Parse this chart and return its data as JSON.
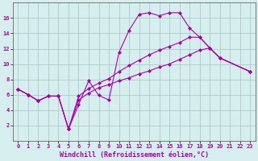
{
  "background_color": "#d6eeee",
  "grid_color": "#aacccc",
  "line_color": "#aa00aa",
  "xlabel": "Windchill (Refroidissement éolien,°C)",
  "xlim": [
    -0.5,
    23.5
  ],
  "ylim": [
    0,
    18
  ],
  "xticks": [
    0,
    1,
    2,
    3,
    4,
    5,
    6,
    7,
    8,
    9,
    10,
    11,
    12,
    13,
    14,
    15,
    16,
    17,
    18,
    19,
    20,
    21,
    22,
    23
  ],
  "yticks": [
    2,
    4,
    6,
    8,
    10,
    12,
    14,
    16
  ],
  "line1_x": [
    0,
    1,
    2,
    3,
    4,
    5,
    6,
    7,
    8,
    9,
    10,
    11,
    12,
    13,
    14,
    15,
    16,
    17,
    18,
    19,
    20,
    23
  ],
  "line1_y": [
    6.7,
    6.0,
    5.2,
    5.8,
    5.8,
    1.5,
    4.7,
    7.8,
    5.9,
    5.3,
    11.5,
    14.4,
    16.5,
    16.7,
    16.3,
    16.7,
    16.7,
    14.7,
    13.5,
    12.1,
    10.8,
    9.0
  ],
  "line2_x": [
    0,
    1,
    2,
    3,
    4,
    5,
    6,
    7,
    8,
    9,
    10,
    11,
    12,
    13,
    14,
    15,
    16,
    17,
    18,
    19,
    20,
    23
  ],
  "line2_y": [
    6.7,
    6.0,
    5.2,
    5.8,
    5.8,
    1.5,
    5.8,
    6.8,
    7.5,
    8.1,
    9.0,
    9.8,
    10.5,
    11.2,
    11.8,
    12.3,
    12.8,
    13.5,
    13.5,
    12.1,
    10.8,
    9.0
  ],
  "line3_x": [
    0,
    1,
    2,
    3,
    4,
    5,
    6,
    7,
    8,
    9,
    10,
    11,
    12,
    13,
    14,
    15,
    16,
    17,
    18,
    19,
    20,
    23
  ],
  "line3_y": [
    6.7,
    6.0,
    5.2,
    5.8,
    5.8,
    1.5,
    5.3,
    6.2,
    6.9,
    7.3,
    7.8,
    8.2,
    8.7,
    9.1,
    9.6,
    10.0,
    10.6,
    11.2,
    11.8,
    12.1,
    10.8,
    9.0
  ],
  "marker": "D",
  "markersize": 2.0,
  "linewidth": 0.8,
  "tick_fontsize": 5.0,
  "label_fontsize": 6.0
}
